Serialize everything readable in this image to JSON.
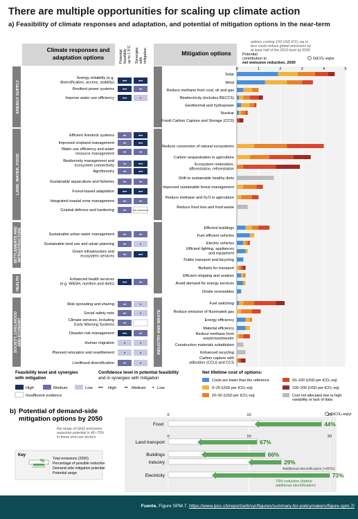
{
  "title": "There are multiple opportunities for scaling up climate action",
  "section_a": {
    "label": "a)",
    "title": "Feasibility of climate responses and adaptation, and potential of mitigation options in the near-term"
  },
  "adaptation_header": {
    "title_line1": "Climate responses and",
    "title_line2": "adaptation options",
    "col1": [
      "Potential",
      "feasibility",
      "up to 1.5°C"
    ],
    "col2": [
      "Synergies",
      "with",
      "mitigation"
    ]
  },
  "mitigation_header": {
    "title": "Mitigation options",
    "note_line1": "options costing 100 USD tCO₂-eq or",
    "note_line2": "less could reduce global emissions by",
    "note_line3": "at least half of the 2019 level by 2030",
    "axis_title_line1": "Potential",
    "axis_title_line2": "contribution to",
    "axis_title_line3": "net emission reduction, 2030",
    "unit": "GtCO₂-eq/yr"
  },
  "sectors": [
    {
      "name": "ENERGY SUPPLY"
    },
    {
      "name": "LAND, WATER, FOOD"
    },
    {
      "name_line1": "SETTLEMENTS AND",
      "name_line2": "INFRASTRUCTURE"
    },
    {
      "name": "HEALTH"
    },
    {
      "name_line1": "SOCIETY, LIVELIHOOD",
      "name_line2": "AND ECONOMY"
    }
  ],
  "mitigation_sectors": [
    "INDUSTRY AND WASTE"
  ],
  "adaptation_options": [
    {
      "label_line1": "Energy reliability (e.g.",
      "label_line2": "diversification, access, stability)",
      "feasibility": "•••",
      "synergy": "•••"
    },
    {
      "label_line1": "Resilient power systems",
      "label_line2": "",
      "feasibility": "•••",
      "synergy": "••"
    },
    {
      "label_line1": "Improve water use efficiency",
      "label_line2": "",
      "feasibility": "•••",
      "synergy": "•"
    },
    {
      "label_line1": "Efficient livestock systems",
      "label_line2": "",
      "feasibility": "••",
      "synergy": "•••"
    },
    {
      "label_line1": "Improved cropland management",
      "label_line2": "",
      "feasibility": "••",
      "synergy": "•••"
    },
    {
      "label_line1": "Water use efficiency and water",
      "label_line2": "resource management",
      "feasibility": "••",
      "synergy": "••"
    },
    {
      "label_line1": "Biodiversity management and",
      "label_line2": "ecosystem connectivity",
      "feasibility": "••",
      "synergy": "•••"
    },
    {
      "label_line1": "Agroforestry",
      "label_line2": "",
      "feasibility": "••",
      "synergy": "•••"
    },
    {
      "label_line1": "Sustainable aquaculture and fisheries",
      "label_line2": "",
      "feasibility": "••",
      "synergy": "••"
    },
    {
      "label_line1": "Forest-based adaptation",
      "label_line2": "",
      "feasibility": "•••",
      "synergy": "•••"
    },
    {
      "label_line1": "Integrated coastal zone management",
      "label_line2": "",
      "feasibility": "••",
      "synergy": "••"
    },
    {
      "label_line1": "Coastal defence and hardening",
      "label_line2": "",
      "feasibility": "••",
      "synergy": "not assessed"
    },
    {
      "label_line1": "Sustainable urban water management",
      "label_line2": "",
      "feasibility": "••",
      "synergy": "••"
    },
    {
      "label_line1": "Sustainable land use and urban planning",
      "label_line2": "",
      "feasibility": "••",
      "synergy": "•"
    },
    {
      "label_line1": "Green infrastructure and",
      "label_line2": "ecosystem services",
      "feasibility": "••",
      "synergy": "•••"
    },
    {
      "label_line1": "Enhanced health services",
      "label_line2": "(e.g. WASH, nutrition and diets)",
      "feasibility": "•••",
      "synergy": "••"
    },
    {
      "label_line1": "Risk spreading and sharing",
      "label_line2": "",
      "feasibility": "••",
      "synergy": "•"
    },
    {
      "label_line1": "Social safety nets",
      "label_line2": "",
      "feasibility": "••",
      "synergy": "•"
    },
    {
      "label_line1": "Climate services, including",
      "label_line2": "Early Warning Systems",
      "feasibility": "••",
      "synergy": ""
    },
    {
      "label_line1": "Disaster risk management",
      "label_line2": "",
      "feasibility": "•••",
      "synergy": "••"
    },
    {
      "label_line1": "Human migration",
      "label_line2": "",
      "feasibility": "•",
      "synergy": "•"
    },
    {
      "label_line1": "Planned relocation and resettlement",
      "label_line2": "",
      "feasibility": "•",
      "synergy": "•"
    },
    {
      "label_line1": "Livelihood diversification",
      "label_line2": "",
      "feasibility": "••",
      "synergy": "•"
    }
  ],
  "feasibility_legend": {
    "title_line1": "Feasibility level and synergies",
    "title_line2": "with mitigation",
    "high": "High",
    "medium": "Medium",
    "low": "Low",
    "insufficient": "Insufficient evidence"
  },
  "confidence_legend": {
    "title_line1": "Confidence level in potential feasibility",
    "title_line2": "and in synergies with mitigation",
    "high": "High",
    "medium": "Medium",
    "low": "Low"
  },
  "cost_legend": {
    "title": "Net lifetime cost of options:",
    "items": [
      {
        "label_line1": "Costs are lower than the reference",
        "label_line2": "",
        "color": "#4a90d9"
      },
      {
        "label_line1": "0–20 (USD per tCO₂-eq)",
        "label_line2": "",
        "color": "#f2b33d"
      },
      {
        "label_line1": "20–50 (USD per tCO₂-eq)",
        "label_line2": "",
        "color": "#e8832a"
      },
      {
        "label_line1": "50–100 (USD per tCO₂-eq)",
        "label_line2": "",
        "color": "#d9462b"
      },
      {
        "label_line1": "100–200 (USD per tCO₂-eq)",
        "label_line2": "",
        "color": "#9b2a22"
      },
      {
        "label_line1": "Cost not allocated due to high",
        "label_line2": "variability or lack of data",
        "color": "#bbbbbb"
      }
    ]
  },
  "colors": {
    "high": "#17305c",
    "medium": "#6c6fa6",
    "low": "#c7c8e3",
    "cost_neg": "#4a90d9",
    "cost_0_20": "#f2b33d",
    "cost_20_50": "#e8832a",
    "cost_50_100": "#d9462b",
    "cost_100_200": "#9b2a22",
    "cost_na": "#bbbbbb",
    "demand_green": "#5aa55a",
    "footer_bg": "#0d4a52"
  },
  "section_b": {
    "label": "b)",
    "title_line1": "Potential of demand-side",
    "title_line2": "mitigation options by 2050",
    "range_note_line1": "the range of GHG emissions",
    "range_note_line2": "reduction potential is 40–70%",
    "range_note_line3": "in these end-use sectors",
    "unit": "GtCO₂-eq/yr",
    "key_title": "Key",
    "key_percent": "%",
    "key_items": [
      "Total emissions (2050)",
      "Percentage of possible reduction",
      "Demand-side mitigation potential",
      "Potential range"
    ],
    "additional_electrification_line1": "Additional electrification (+60%)",
    "electricity_note_line1": "73% reduction (before",
    "electricity_note_line2": "additional electrification)"
  },
  "footer": {
    "label": "Fuente.",
    "text": "Figure SPM.7.",
    "link": "https://www.ipcc.ch/report/ar6/syr/figures/summary-for-policymakers/figure-spm-7/"
  },
  "chart_data": [
    {
      "type": "bar",
      "title": "Mitigation options",
      "xlabel": "Potential contribution to net emission reduction, 2030",
      "unit": "GtCO₂-eq/yr",
      "xlim": [
        0,
        5
      ],
      "ticks": [
        0,
        1,
        2,
        3,
        4,
        5
      ],
      "stacked": true,
      "series_colors": [
        "cost_neg",
        "cost_0_20",
        "cost_20_50",
        "cost_50_100",
        "cost_100_200",
        "cost_na"
      ],
      "categories": [
        "Solar",
        "Wind",
        "Reduce methane from coal, oil and gas",
        "Bioelectricity (includes BECCS)",
        "Geothermal and hydropower",
        "Nuclear",
        "Fossil Carbon Capture and Storage (CCS)",
        "Reduce conversion of natural ecosystems",
        "Carbon sequestration in agriculture",
        "Ecosystem restoration, afforestation, reforestation",
        "Shift to sustainable healthy diets",
        "Improved sustainable forest management",
        "Reduce methane and N₂O in agriculture",
        "Reduce food loss and food waste",
        "Efficient buildings",
        "Fuel efficient vehicles",
        "Electric vehicles",
        "Efficient lighting, appliances and equipment",
        "Public transport and bicycling",
        "Biofuels for transport",
        "Efficient shipping and aviation",
        "Avoid demand for energy services",
        "Onsite renewables",
        "Fuel switching",
        "Reduce emission of fluorinated gas",
        "Energy efficiency",
        "Material efficiency",
        "Reduce methane from waste/wastewater",
        "Construction materials substitution",
        "Enhanced recycling",
        "Carbon capture with utilisation (CCU) and CCS"
      ],
      "values": [
        [
          1.9,
          0.9,
          0.8,
          0.6,
          0.3,
          0
        ],
        [
          1.3,
          1.0,
          0.7,
          0.5,
          0,
          0
        ],
        [
          0.3,
          0.4,
          0.3,
          0,
          0,
          0
        ],
        [
          0.1,
          0.2,
          0.3,
          0.4,
          0.2,
          0
        ],
        [
          0.2,
          0.4,
          0.2,
          0.1,
          0,
          0
        ],
        [
          0.1,
          0.1,
          0.2,
          0.1,
          0,
          0
        ],
        [
          0,
          0,
          0,
          0.1,
          0.2,
          0
        ],
        [
          0,
          0.8,
          1.5,
          1.7,
          0,
          0
        ],
        [
          0,
          0.6,
          0.9,
          1.1,
          0.8,
          0
        ],
        [
          0,
          0,
          0.3,
          1.5,
          1.1,
          0
        ],
        [
          0,
          0,
          0,
          0,
          0,
          1.7
        ],
        [
          0,
          0.3,
          0.6,
          0.3,
          0,
          0
        ],
        [
          0,
          0.2,
          0.5,
          0.3,
          0,
          0
        ],
        [
          0,
          0,
          0,
          0,
          0,
          0.5
        ],
        [
          0.4,
          0.3,
          0.3,
          0.5,
          0,
          0
        ],
        [
          0.6,
          0.2,
          0,
          0,
          0,
          0
        ],
        [
          0.3,
          0.1,
          0.1,
          0.1,
          0,
          0
        ],
        [
          0.4,
          0.1,
          0,
          0,
          0,
          0
        ],
        [
          0.3,
          0,
          0,
          0,
          0,
          0
        ],
        [
          0,
          0.1,
          0.1,
          0.1,
          0.1,
          0
        ],
        [
          0.2,
          0.1,
          0.1,
          0,
          0,
          0
        ],
        [
          0.3,
          0.1,
          0,
          0,
          0,
          0
        ],
        [
          0.2,
          0,
          0,
          0,
          0,
          0
        ],
        [
          0.1,
          0.2,
          0.5,
          1.0,
          0.4,
          0
        ],
        [
          0,
          0.2,
          0.5,
          0.4,
          0,
          0
        ],
        [
          0.4,
          0.2,
          0.1,
          0,
          0,
          0
        ],
        [
          0.4,
          0.2,
          0,
          0,
          0,
          0
        ],
        [
          0,
          0.1,
          0.2,
          0.3,
          0,
          0
        ],
        [
          0,
          0,
          0,
          0,
          0,
          0.3
        ],
        [
          0,
          0,
          0,
          0,
          0,
          0.4
        ],
        [
          0,
          0,
          0.1,
          0.1,
          0.2,
          0
        ]
      ]
    },
    {
      "type": "bar",
      "title": "Potential of demand-side mitigation options by 2050",
      "unit": "GtCO₂-eq/yr",
      "xlim": [
        0,
        20
      ],
      "ticks": [
        0,
        10,
        20
      ],
      "categories": [
        "Food",
        "Land transport",
        "Buildings",
        "Industry",
        "Electricity"
      ],
      "total_emissions": [
        19,
        11,
        12,
        14,
        20
      ],
      "reduction_percent": [
        "44%",
        "67%",
        "66%",
        "29%",
        "73%"
      ],
      "potential": [
        8.3,
        7.4,
        7.9,
        4.1,
        14.6
      ]
    }
  ]
}
